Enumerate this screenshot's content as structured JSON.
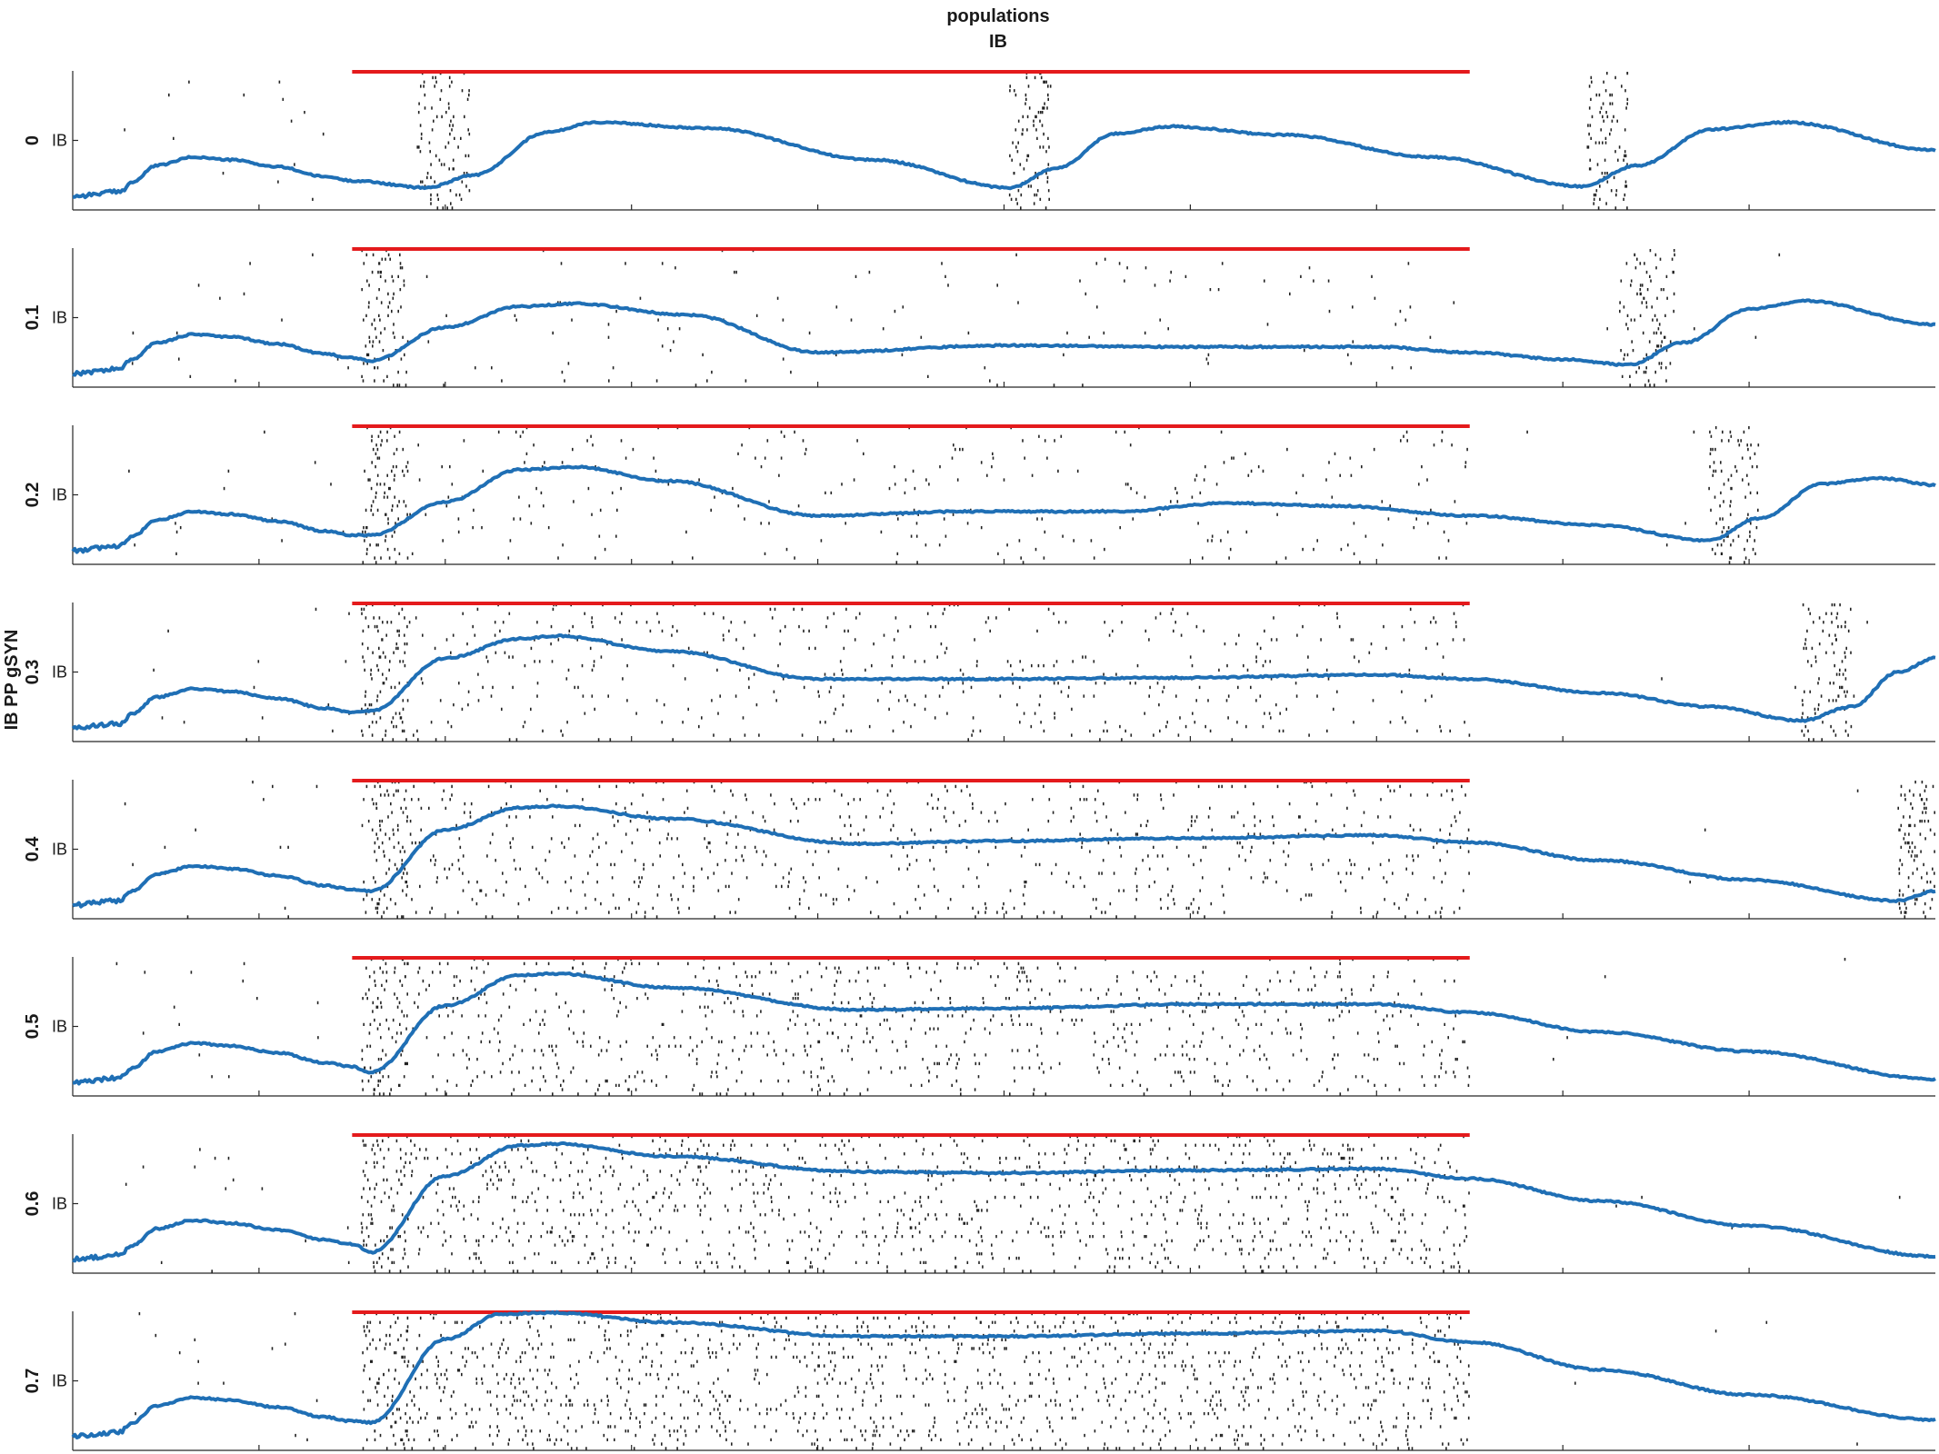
{
  "chart_data": {
    "type": "raster-with-line",
    "title": "populations",
    "subtitle": "IB",
    "ylabel": "IB PP gSYN",
    "panel_tick_label": "IB",
    "xlim": [
      0,
      1
    ],
    "ylim": [
      0,
      1
    ],
    "colors": {
      "spikes": "#222222",
      "line": "#1f6fb5",
      "stimulus": "#e41a1c",
      "axis": "#262626"
    },
    "stimulus": {
      "start": 0.15,
      "end": 0.75
    },
    "baseline": {
      "x": [
        0.0,
        0.025,
        0.032,
        0.045,
        0.065,
        0.085,
        0.11,
        0.135,
        0.15
      ],
      "y": [
        0.1,
        0.13,
        0.2,
        0.32,
        0.38,
        0.36,
        0.31,
        0.24,
        0.21
      ]
    },
    "panels": [
      {
        "gsyn": "0",
        "bursts": [
          [
            0.185,
            0.213
          ],
          [
            0.503,
            0.525
          ],
          [
            0.813,
            0.835
          ]
        ],
        "sparse_end": 0.15,
        "density": 0.0,
        "line": {
          "x": [
            0.15,
            0.19,
            0.215,
            0.255,
            0.28,
            0.34,
            0.43,
            0.503,
            0.528,
            0.56,
            0.59,
            0.65,
            0.73,
            0.81,
            0.84,
            0.88,
            0.92,
            1.0
          ],
          "y": [
            0.21,
            0.16,
            0.25,
            0.56,
            0.63,
            0.59,
            0.36,
            0.16,
            0.3,
            0.55,
            0.6,
            0.54,
            0.38,
            0.17,
            0.32,
            0.58,
            0.63,
            0.43
          ]
        }
      },
      {
        "gsyn": "0.1",
        "bursts": [
          [
            0.155,
            0.18
          ],
          [
            0.83,
            0.86
          ]
        ],
        "sparse_end": 0.75,
        "density": 0.01,
        "line": {
          "x": [
            0.15,
            0.16,
            0.2,
            0.24,
            0.27,
            0.33,
            0.4,
            0.5,
            0.6,
            0.7,
            0.75,
            0.8,
            0.835,
            0.865,
            0.9,
            0.93,
            1.0
          ],
          "y": [
            0.18,
            0.19,
            0.43,
            0.58,
            0.6,
            0.52,
            0.25,
            0.3,
            0.29,
            0.29,
            0.25,
            0.2,
            0.16,
            0.32,
            0.56,
            0.62,
            0.45
          ]
        }
      },
      {
        "gsyn": "0.2",
        "bursts": [
          [
            0.155,
            0.18
          ],
          [
            0.878,
            0.905
          ]
        ],
        "sparse_end": 0.75,
        "density": 0.022,
        "line": {
          "x": [
            0.15,
            0.16,
            0.2,
            0.24,
            0.27,
            0.32,
            0.4,
            0.48,
            0.56,
            0.62,
            0.68,
            0.75,
            0.82,
            0.878,
            0.905,
            0.94,
            0.97,
            1.0
          ],
          "y": [
            0.2,
            0.21,
            0.45,
            0.68,
            0.7,
            0.6,
            0.35,
            0.38,
            0.38,
            0.44,
            0.42,
            0.35,
            0.28,
            0.17,
            0.33,
            0.58,
            0.62,
            0.57
          ]
        }
      },
      {
        "gsyn": "0.3",
        "bursts": [
          [
            0.155,
            0.18
          ],
          [
            0.928,
            0.955
          ]
        ],
        "sparse_end": 0.75,
        "density": 0.038,
        "line": {
          "x": [
            0.15,
            0.16,
            0.2,
            0.24,
            0.26,
            0.32,
            0.4,
            0.5,
            0.6,
            0.7,
            0.75,
            0.82,
            0.88,
            0.928,
            0.955,
            0.98,
            1.0
          ],
          "y": [
            0.2,
            0.22,
            0.6,
            0.74,
            0.76,
            0.65,
            0.45,
            0.45,
            0.46,
            0.48,
            0.45,
            0.35,
            0.25,
            0.15,
            0.25,
            0.5,
            0.6
          ]
        }
      },
      {
        "gsyn": "0.4",
        "bursts": [
          [
            0.155,
            0.18
          ],
          [
            0.98,
            1.0
          ]
        ],
        "sparse_end": 0.75,
        "density": 0.055,
        "line": {
          "x": [
            0.15,
            0.16,
            0.2,
            0.24,
            0.26,
            0.32,
            0.42,
            0.5,
            0.6,
            0.7,
            0.75,
            0.82,
            0.9,
            0.98,
            1.0
          ],
          "y": [
            0.18,
            0.2,
            0.64,
            0.8,
            0.81,
            0.72,
            0.54,
            0.56,
            0.58,
            0.6,
            0.55,
            0.42,
            0.28,
            0.13,
            0.2
          ]
        }
      },
      {
        "gsyn": "0.5",
        "bursts": [
          [
            0.155,
            0.18
          ]
        ],
        "sparse_end": 0.75,
        "density": 0.07,
        "line": {
          "x": [
            0.15,
            0.16,
            0.2,
            0.24,
            0.26,
            0.32,
            0.42,
            0.5,
            0.6,
            0.7,
            0.75,
            0.82,
            0.9,
            1.0
          ],
          "y": [
            0.15,
            0.17,
            0.65,
            0.87,
            0.88,
            0.78,
            0.62,
            0.63,
            0.66,
            0.66,
            0.6,
            0.46,
            0.32,
            0.12
          ]
        }
      },
      {
        "gsyn": "0.6",
        "bursts": [
          [
            0.155,
            0.18
          ]
        ],
        "sparse_end": 0.75,
        "density": 0.09,
        "line": {
          "x": [
            0.15,
            0.16,
            0.2,
            0.24,
            0.26,
            0.32,
            0.42,
            0.5,
            0.6,
            0.7,
            0.75,
            0.82,
            0.9,
            1.0
          ],
          "y": [
            0.13,
            0.15,
            0.7,
            0.92,
            0.93,
            0.84,
            0.73,
            0.72,
            0.74,
            0.75,
            0.68,
            0.52,
            0.34,
            0.12
          ]
        }
      },
      {
        "gsyn": "0.7",
        "bursts": [
          [
            0.155,
            0.18
          ]
        ],
        "sparse_end": 0.75,
        "density": 0.11,
        "line": {
          "x": [
            0.15,
            0.16,
            0.2,
            0.23,
            0.26,
            0.32,
            0.42,
            0.5,
            0.6,
            0.7,
            0.75,
            0.82,
            0.9,
            1.0
          ],
          "y": [
            0.18,
            0.2,
            0.8,
            0.98,
            0.99,
            0.92,
            0.82,
            0.82,
            0.84,
            0.86,
            0.78,
            0.58,
            0.4,
            0.22
          ]
        }
      }
    ]
  }
}
